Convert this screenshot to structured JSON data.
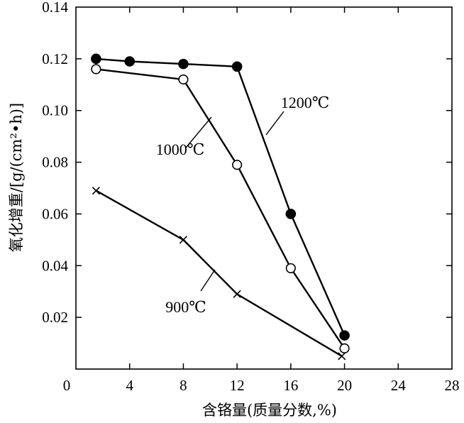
{
  "chart_data": {
    "type": "line",
    "title": "",
    "xlabel": "含铬量(质量分数,%)",
    "ylabel": "氧化增重/[g/(cm²•h)]",
    "xlim": [
      0,
      28
    ],
    "ylim": [
      0,
      0.14
    ],
    "xticks": [
      0,
      4,
      8,
      12,
      16,
      20,
      24,
      28
    ],
    "xtick_labels": [
      "0",
      "4",
      "8",
      "12",
      "16",
      "20",
      "24",
      "28"
    ],
    "yticks": [
      0.02,
      0.04,
      0.06,
      0.08,
      0.1,
      0.12,
      0.14
    ],
    "ytick_labels": [
      "0.02",
      "0.04",
      "0.06",
      "0.08",
      "0.10",
      "0.12",
      "0.14"
    ],
    "grid": false,
    "legend": "none",
    "series": [
      {
        "name": "1200℃",
        "marker": "filled-circle",
        "x": [
          1.5,
          4,
          8,
          12,
          16,
          20
        ],
        "y": [
          0.12,
          0.119,
          0.118,
          0.117,
          0.06,
          0.013
        ]
      },
      {
        "name": "1000℃",
        "marker": "open-circle",
        "x": [
          1.5,
          8,
          12,
          16,
          20
        ],
        "y": [
          0.116,
          0.112,
          0.079,
          0.039,
          0.008
        ]
      },
      {
        "name": "900℃",
        "marker": "cross",
        "x": [
          1.5,
          8,
          12,
          19.8
        ],
        "y": [
          0.069,
          0.05,
          0.029,
          0.005
        ]
      }
    ]
  }
}
